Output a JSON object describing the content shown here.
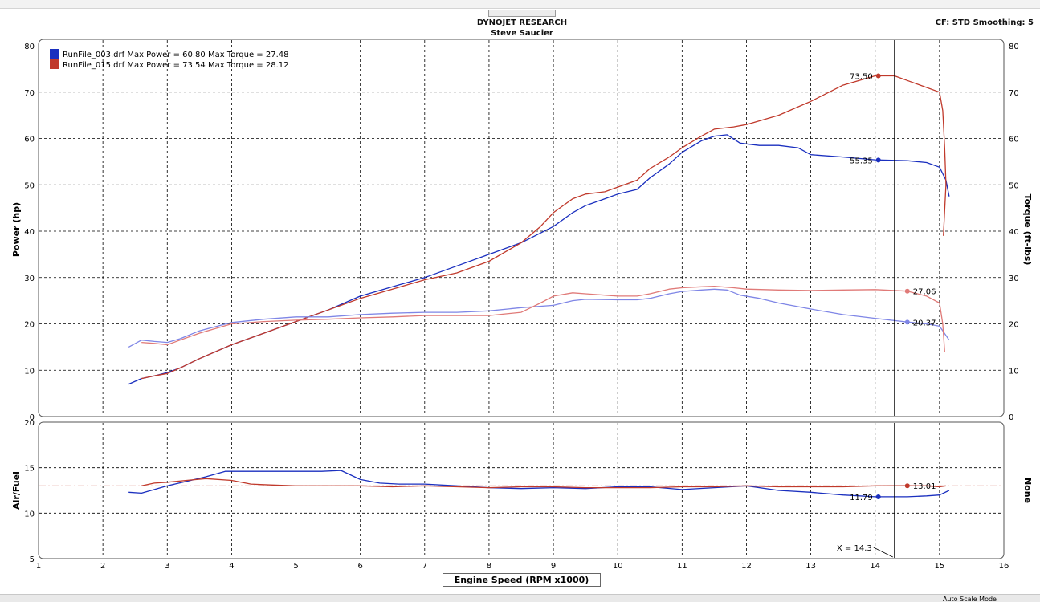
{
  "header": {
    "title_line1": "DYNOJET RESEARCH",
    "title_line2": "Steve Saucier",
    "right_info": "CF: STD  Smoothing: 5"
  },
  "footer": {
    "auto_scale_label": "Auto Scale Mode"
  },
  "colors": {
    "blue_power": "#1a2fbf",
    "red_power": "#c0392b",
    "blue_torque": "#7f86e6",
    "red_torque": "#e07a78",
    "ref_line": "#c0392b",
    "grid": "#000000"
  },
  "chart_data": [
    {
      "type": "line",
      "ylabel_left": "Power (hp)",
      "ylabel_right": "Torque (ft-lbs)",
      "xlim": [
        1,
        16
      ],
      "ylim": [
        0,
        80
      ],
      "yticks": [
        0,
        10,
        20,
        30,
        40,
        50,
        60,
        70,
        80
      ],
      "grid": true,
      "legend_position": "top-left",
      "legend": [
        {
          "text": "RunFile_003.drf Max Power = 60.80 Max Torque = 27.48",
          "color": "#1a2fbf"
        },
        {
          "text": "RunFile_015.drf Max Power = 73.54 Max Torque = 28.12",
          "color": "#c0392b"
        }
      ],
      "series": [
        {
          "name": "RunFile_003.drf",
          "measure": "power",
          "color": "#1a2fbf",
          "x": [
            2.4,
            2.6,
            2.8,
            3.0,
            3.2,
            3.5,
            4.0,
            4.5,
            5.0,
            5.5,
            6.0,
            6.5,
            7.0,
            7.5,
            8.0,
            8.5,
            9.0,
            9.3,
            9.5,
            9.8,
            10.0,
            10.3,
            10.5,
            10.8,
            11.0,
            11.3,
            11.5,
            11.7,
            11.9,
            12.2,
            12.5,
            12.8,
            13.0,
            13.5,
            14.0,
            14.5,
            14.8,
            15.0,
            15.1,
            15.15
          ],
          "y": [
            7,
            8.2,
            8.8,
            9.5,
            10.5,
            12.5,
            15.5,
            18,
            20.5,
            23,
            26,
            28,
            30,
            32.5,
            35,
            37.5,
            41,
            44,
            45.5,
            47,
            48,
            49,
            51.5,
            54.5,
            57,
            59.5,
            60.5,
            60.8,
            59,
            58.5,
            58.5,
            58,
            56.5,
            56,
            55.4,
            55.2,
            54.8,
            53.8,
            51,
            47.5
          ]
        },
        {
          "name": "RunFile_015.drf",
          "measure": "power",
          "color": "#c0392b",
          "x": [
            2.6,
            2.8,
            3.0,
            3.2,
            3.5,
            4.0,
            4.5,
            5.0,
            5.5,
            6.0,
            6.5,
            7.0,
            7.5,
            8.0,
            8.5,
            8.8,
            9.0,
            9.3,
            9.5,
            9.8,
            10.0,
            10.3,
            10.5,
            10.8,
            11.0,
            11.3,
            11.5,
            11.8,
            12.0,
            12.5,
            13.0,
            13.5,
            14.0,
            14.3,
            14.5,
            14.8,
            15.0,
            15.05,
            15.08,
            15.1,
            15.06
          ],
          "y": [
            8.2,
            8.8,
            9.3,
            10.5,
            12.5,
            15.5,
            18,
            20.5,
            23,
            25.5,
            27.5,
            29.5,
            31,
            33.5,
            37.5,
            41,
            44,
            47,
            48,
            48.5,
            49.5,
            51,
            53.5,
            56,
            58,
            60.5,
            62,
            62.5,
            63,
            65,
            68,
            71.5,
            73.5,
            73.5,
            72.5,
            71,
            70,
            66,
            58,
            50,
            39
          ]
        },
        {
          "name": "RunFile_003.drf",
          "measure": "torque",
          "color": "#7f86e6",
          "x": [
            2.4,
            2.6,
            2.8,
            3.0,
            3.2,
            3.5,
            4.0,
            4.5,
            5.0,
            5.5,
            6.0,
            6.5,
            7.0,
            7.5,
            8.0,
            8.5,
            9.0,
            9.3,
            9.5,
            10.0,
            10.3,
            10.5,
            10.8,
            11.0,
            11.3,
            11.5,
            11.7,
            11.9,
            12.2,
            12.5,
            13.0,
            13.5,
            14.0,
            14.5,
            14.8,
            15.0,
            15.1,
            15.15
          ],
          "y": [
            15,
            16.5,
            16.2,
            16,
            16.8,
            18.5,
            20.3,
            21,
            21.5,
            21.5,
            22,
            22.3,
            22.5,
            22.5,
            22.8,
            23.5,
            24,
            25,
            25.3,
            25.2,
            25.2,
            25.5,
            26.5,
            27,
            27.3,
            27.48,
            27.3,
            26.2,
            25.5,
            24.5,
            23.2,
            22,
            21.2,
            20.4,
            20,
            19.5,
            17.5,
            16.5
          ]
        },
        {
          "name": "RunFile_015.drf",
          "measure": "torque",
          "color": "#e07a78",
          "x": [
            2.6,
            2.8,
            3.0,
            3.2,
            3.5,
            4.0,
            4.5,
            5.0,
            5.5,
            6.0,
            6.5,
            7.0,
            7.5,
            8.0,
            8.5,
            8.8,
            9.0,
            9.3,
            9.5,
            10.0,
            10.3,
            10.5,
            10.8,
            11.0,
            11.3,
            11.5,
            11.8,
            12.0,
            12.5,
            13.0,
            13.5,
            14.0,
            14.5,
            14.8,
            15.0,
            15.05,
            15.08
          ],
          "y": [
            16,
            15.8,
            15.5,
            16.5,
            18,
            20,
            20.5,
            20.8,
            21,
            21.3,
            21.5,
            21.8,
            21.8,
            21.8,
            22.5,
            24.5,
            26,
            26.7,
            26.5,
            26,
            26,
            26.5,
            27.5,
            27.8,
            28,
            28.12,
            27.8,
            27.5,
            27.3,
            27.2,
            27.3,
            27.4,
            27.06,
            26,
            24.5,
            20,
            14
          ]
        }
      ],
      "annotations": [
        {
          "text": "73.50",
          "x": 14.05,
          "y": 73.5,
          "color": "#c0392b",
          "label_side": "left"
        },
        {
          "text": "55.35",
          "x": 14.05,
          "y": 55.35,
          "color": "#1a2fbf",
          "label_side": "left"
        },
        {
          "text": "27.06",
          "x": 14.5,
          "y": 27.06,
          "color": "#e07a78",
          "label_side": "right"
        },
        {
          "text": "20.37",
          "x": 14.5,
          "y": 20.37,
          "color": "#7f86e6",
          "label_side": "right"
        }
      ]
    },
    {
      "type": "line",
      "ylabel_left": "Air/Fuel",
      "ylabel_right": "None",
      "xlabel": "Engine Speed (RPM x1000)",
      "xlim": [
        1,
        16
      ],
      "ylim": [
        5,
        20
      ],
      "yticks": [
        5,
        10,
        15,
        20
      ],
      "xticks": [
        1,
        2,
        3,
        4,
        5,
        6,
        7,
        8,
        9,
        10,
        11,
        12,
        13,
        14,
        15,
        16
      ],
      "grid": true,
      "reference_line": {
        "y": 13,
        "color": "#c0392b",
        "style": "dash-dot"
      },
      "cursor": {
        "text": "X = 14.3",
        "x": 14.3
      },
      "series": [
        {
          "name": "RunFile_003.drf",
          "measure": "air_fuel",
          "color": "#1a2fbf",
          "x": [
            2.4,
            2.6,
            2.8,
            3.0,
            3.3,
            3.6,
            3.9,
            4.2,
            4.6,
            5.0,
            5.4,
            5.7,
            6.0,
            6.3,
            6.6,
            7.0,
            7.5,
            8.0,
            8.5,
            9.0,
            9.5,
            10.0,
            10.5,
            11.0,
            11.5,
            12.0,
            12.5,
            13.0,
            13.5,
            14.0,
            14.5,
            14.8,
            15.0,
            15.15
          ],
          "y": [
            12.3,
            12.2,
            12.6,
            13.0,
            13.5,
            14.0,
            14.6,
            14.6,
            14.6,
            14.6,
            14.6,
            14.7,
            13.7,
            13.3,
            13.2,
            13.2,
            13.0,
            12.8,
            12.7,
            12.8,
            12.7,
            12.9,
            12.9,
            12.6,
            12.8,
            13.0,
            12.5,
            12.3,
            12.0,
            11.8,
            11.8,
            11.9,
            12.0,
            12.5
          ]
        },
        {
          "name": "RunFile_015.drf",
          "measure": "air_fuel",
          "color": "#c0392b",
          "x": [
            2.6,
            2.8,
            3.0,
            3.3,
            3.6,
            4.0,
            4.3,
            4.6,
            5.0,
            5.5,
            6.0,
            6.5,
            7.0,
            7.5,
            8.0,
            8.5,
            9.0,
            9.5,
            10.0,
            10.5,
            11.0,
            11.5,
            12.0,
            12.5,
            13.0,
            13.5,
            14.0,
            14.5,
            14.8,
            15.0,
            15.1
          ],
          "y": [
            13.0,
            13.3,
            13.4,
            13.6,
            13.8,
            13.6,
            13.2,
            13.1,
            13.0,
            13.0,
            13.0,
            12.9,
            13.0,
            12.9,
            12.8,
            12.9,
            12.9,
            12.8,
            12.8,
            12.8,
            12.9,
            12.9,
            13.0,
            12.9,
            12.9,
            12.9,
            13.0,
            13.01,
            13.0,
            12.9,
            13.0
          ]
        }
      ],
      "annotations": [
        {
          "text": "11.79",
          "x": 14.05,
          "y": 11.79,
          "color": "#1a2fbf",
          "label_side": "left"
        },
        {
          "text": "13.01",
          "x": 14.5,
          "y": 13.01,
          "color": "#c0392b",
          "label_side": "right"
        }
      ]
    }
  ]
}
